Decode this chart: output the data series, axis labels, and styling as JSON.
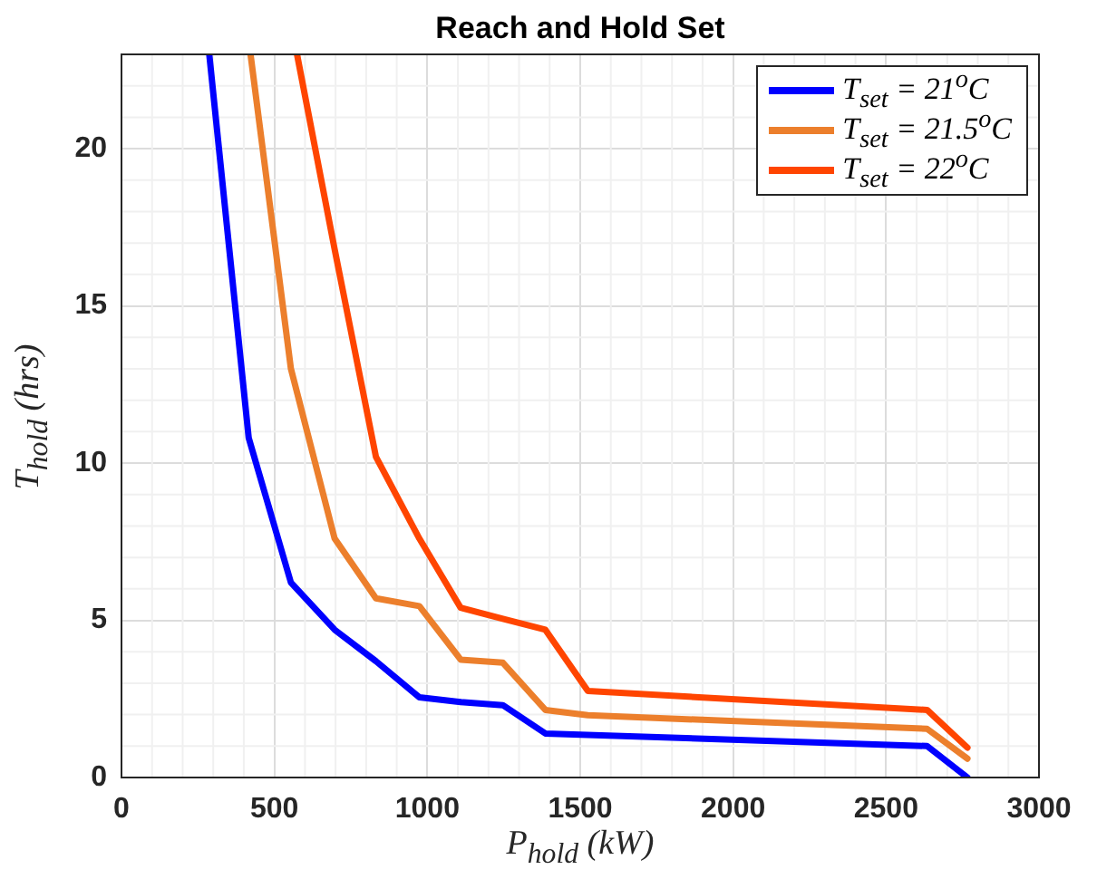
{
  "chart_data": {
    "type": "line",
    "title": "Reach and Hold Set",
    "xlabel": "P$_{hold}$ (kW)",
    "ylabel": "T$_{hold}$ (hrs)",
    "xlim": [
      0,
      3000
    ],
    "xticks": [
      0,
      500,
      1000,
      1500,
      2000,
      2500,
      3000
    ],
    "ylim": [
      0,
      23
    ],
    "yticks": [
      0,
      5,
      10,
      15,
      20
    ],
    "grid": true,
    "legend": "top right",
    "marker": "none",
    "line_style": "solid",
    "series": [
      {
        "name": "T$_{set}$ = 21$^{o}$C",
        "color": "#0000ff",
        "x": [
          287,
          416,
          554,
          697,
          832,
          974,
          1109,
          1247,
          1386,
          2634,
          2766
        ],
        "values": [
          23,
          10.8,
          6.2,
          4.7,
          3.7,
          2.55,
          2.4,
          2.3,
          1.4,
          1.0,
          0
        ]
      },
      {
        "name": "T$_{set}$ = 21.5$^{o}$C",
        "color": "#ec7f2c",
        "x": [
          422,
          554,
          697,
          832,
          974,
          1109,
          1247,
          1386,
          1525,
          2634,
          2766
        ],
        "values": [
          23,
          13.0,
          7.6,
          5.7,
          5.45,
          3.75,
          3.65,
          2.15,
          1.98,
          1.55,
          0.6
        ]
      },
      {
        "name": "T$_{set}$ = 22$^{o}$C",
        "color": "#ff4500",
        "x": [
          574,
          697,
          832,
          974,
          1109,
          1247,
          1386,
          1525,
          2634,
          2766
        ],
        "values": [
          23,
          16.8,
          10.2,
          7.6,
          5.4,
          5.05,
          4.7,
          2.75,
          2.15,
          0.95
        ]
      }
    ]
  }
}
